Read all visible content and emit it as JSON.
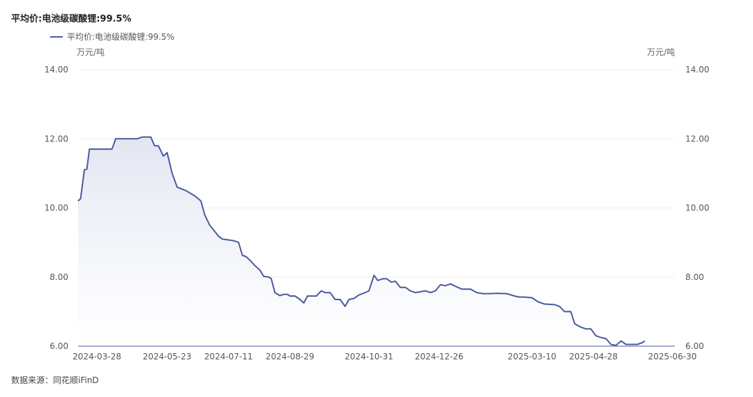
{
  "colors": {
    "line": "#4a5a9c",
    "area_top": "#dfe3f0",
    "grid": "#eeeeee",
    "axis": "#4a5a9c"
  },
  "source": "数据来源：同花顺iFinD",
  "chart_data": {
    "type": "area",
    "title": "平均价:电池级碳酸锂:99.5%",
    "series": [
      {
        "name": "平均价:电池级碳酸锂:99.5%"
      }
    ],
    "ylabel_left": "万元/吨",
    "ylabel_right": "万元/吨",
    "ylim": [
      6,
      14
    ],
    "yticks": [
      6,
      8,
      10,
      12,
      14
    ],
    "ytick_labels": [
      "6.00",
      "8.00",
      "10.00",
      "12.00",
      "14.00"
    ],
    "xlim": [
      "2024-03-13",
      "2025-07-02"
    ],
    "xticks": [
      "2024-03-28",
      "2024-05-23",
      "2024-07-11",
      "2024-08-29",
      "2024-10-31",
      "2024-12-26",
      "2025-03-10",
      "2025-04-28",
      "2025-06-30"
    ],
    "grid": true,
    "legend": "top-left",
    "points": [
      [
        "2024-03-13",
        10.2
      ],
      [
        "2024-03-15",
        10.27
      ],
      [
        "2024-03-18",
        11.1
      ],
      [
        "2024-03-20",
        11.12
      ],
      [
        "2024-03-22",
        11.7
      ],
      [
        "2024-04-09",
        11.7
      ],
      [
        "2024-04-12",
        12.0
      ],
      [
        "2024-04-29",
        12.0
      ],
      [
        "2024-05-03",
        12.05
      ],
      [
        "2024-05-10",
        12.05
      ],
      [
        "2024-05-13",
        11.8
      ],
      [
        "2024-05-16",
        11.8
      ],
      [
        "2024-05-20",
        11.5
      ],
      [
        "2024-05-23",
        11.6
      ],
      [
        "2024-05-27",
        11.0
      ],
      [
        "2024-05-31",
        10.6
      ],
      [
        "2024-06-07",
        10.5
      ],
      [
        "2024-06-14",
        10.35
      ],
      [
        "2024-06-19",
        10.2
      ],
      [
        "2024-06-22",
        9.8
      ],
      [
        "2024-06-26",
        9.5
      ],
      [
        "2024-06-30",
        9.32
      ],
      [
        "2024-07-03",
        9.18
      ],
      [
        "2024-07-06",
        9.1
      ],
      [
        "2024-07-12",
        9.07
      ],
      [
        "2024-07-15",
        9.05
      ],
      [
        "2024-07-19",
        9.0
      ],
      [
        "2024-07-22",
        8.63
      ],
      [
        "2024-07-25",
        8.59
      ],
      [
        "2024-07-29",
        8.45
      ],
      [
        "2024-08-01",
        8.33
      ],
      [
        "2024-08-05",
        8.2
      ],
      [
        "2024-08-08",
        8.02
      ],
      [
        "2024-08-12",
        8.0
      ],
      [
        "2024-08-14",
        7.96
      ],
      [
        "2024-08-17",
        7.55
      ],
      [
        "2024-08-21",
        7.46
      ],
      [
        "2024-08-24",
        7.5
      ],
      [
        "2024-08-27",
        7.5
      ],
      [
        "2024-08-29",
        7.45
      ],
      [
        "2024-09-02",
        7.45
      ],
      [
        "2024-09-06",
        7.35
      ],
      [
        "2024-09-09",
        7.25
      ],
      [
        "2024-09-12",
        7.45
      ],
      [
        "2024-09-19",
        7.45
      ],
      [
        "2024-09-23",
        7.6
      ],
      [
        "2024-09-26",
        7.55
      ],
      [
        "2024-09-30",
        7.55
      ],
      [
        "2024-10-04",
        7.35
      ],
      [
        "2024-10-08",
        7.35
      ],
      [
        "2024-10-12",
        7.15
      ],
      [
        "2024-10-15",
        7.35
      ],
      [
        "2024-10-19",
        7.38
      ],
      [
        "2024-10-23",
        7.48
      ],
      [
        "2024-10-28",
        7.55
      ],
      [
        "2024-10-31",
        7.6
      ],
      [
        "2024-11-04",
        8.05
      ],
      [
        "2024-11-07",
        7.9
      ],
      [
        "2024-11-11",
        7.95
      ],
      [
        "2024-11-14",
        7.95
      ],
      [
        "2024-11-18",
        7.85
      ],
      [
        "2024-11-21",
        7.88
      ],
      [
        "2024-11-25",
        7.7
      ],
      [
        "2024-11-29",
        7.7
      ],
      [
        "2024-12-03",
        7.6
      ],
      [
        "2024-12-07",
        7.55
      ],
      [
        "2024-12-15",
        7.6
      ],
      [
        "2024-12-19",
        7.55
      ],
      [
        "2024-12-23",
        7.6
      ],
      [
        "2024-12-27",
        7.78
      ],
      [
        "2024-12-31",
        7.75
      ],
      [
        "2025-01-04",
        7.8
      ],
      [
        "2025-01-08",
        7.73
      ],
      [
        "2025-01-13",
        7.65
      ],
      [
        "2025-01-20",
        7.65
      ],
      [
        "2025-01-25",
        7.55
      ],
      [
        "2025-01-30",
        7.52
      ],
      [
        "2025-02-05",
        7.52
      ],
      [
        "2025-02-10",
        7.53
      ],
      [
        "2025-02-18",
        7.52
      ],
      [
        "2025-02-24",
        7.45
      ],
      [
        "2025-02-28",
        7.42
      ],
      [
        "2025-03-04",
        7.42
      ],
      [
        "2025-03-10",
        7.4
      ],
      [
        "2025-03-15",
        7.28
      ],
      [
        "2025-03-20",
        7.22
      ],
      [
        "2025-03-28",
        7.2
      ],
      [
        "2025-04-01",
        7.15
      ],
      [
        "2025-04-05",
        7.0
      ],
      [
        "2025-04-10",
        7.0
      ],
      [
        "2025-04-13",
        6.65
      ],
      [
        "2025-04-18",
        6.55
      ],
      [
        "2025-04-22",
        6.5
      ],
      [
        "2025-04-26",
        6.5
      ],
      [
        "2025-04-30",
        6.3
      ],
      [
        "2025-05-04",
        6.25
      ],
      [
        "2025-05-08",
        6.22
      ],
      [
        "2025-05-12",
        6.05
      ],
      [
        "2025-05-16",
        6.02
      ],
      [
        "2025-05-20",
        6.15
      ],
      [
        "2025-05-24",
        6.05
      ],
      [
        "2025-05-28",
        6.05
      ],
      [
        "2025-06-02",
        6.05
      ],
      [
        "2025-06-06",
        6.1
      ],
      [
        "2025-06-08",
        6.15
      ]
    ]
  }
}
